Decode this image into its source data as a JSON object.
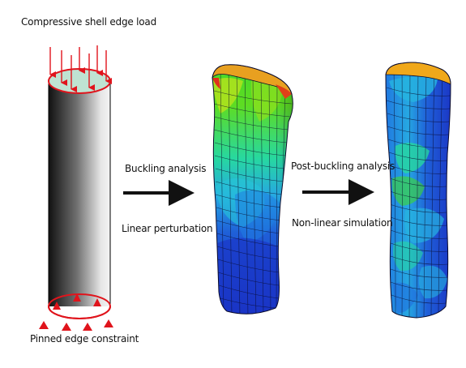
{
  "labels": {
    "top_load": "Compressive shell edge load",
    "bottom_constraint": "Pinned edge constraint",
    "step1_line1": "Buckling analysis",
    "step1_line2": "Linear perturbation",
    "step2_line1": "Post-buckling analysis",
    "step2_line2": "Non-linear simulation"
  },
  "colors": {
    "load_arrow": "#e0141c",
    "cap_fill": "#bfe3d2",
    "process_arrow": "#111111",
    "mesh_line": "#0a0a2a"
  },
  "contour_colormap": [
    "#1a2fc8",
    "#1f6ee0",
    "#26b4e0",
    "#27dc9a",
    "#3fd82c",
    "#b8e21d",
    "#f0a81a",
    "#e0301a"
  ]
}
